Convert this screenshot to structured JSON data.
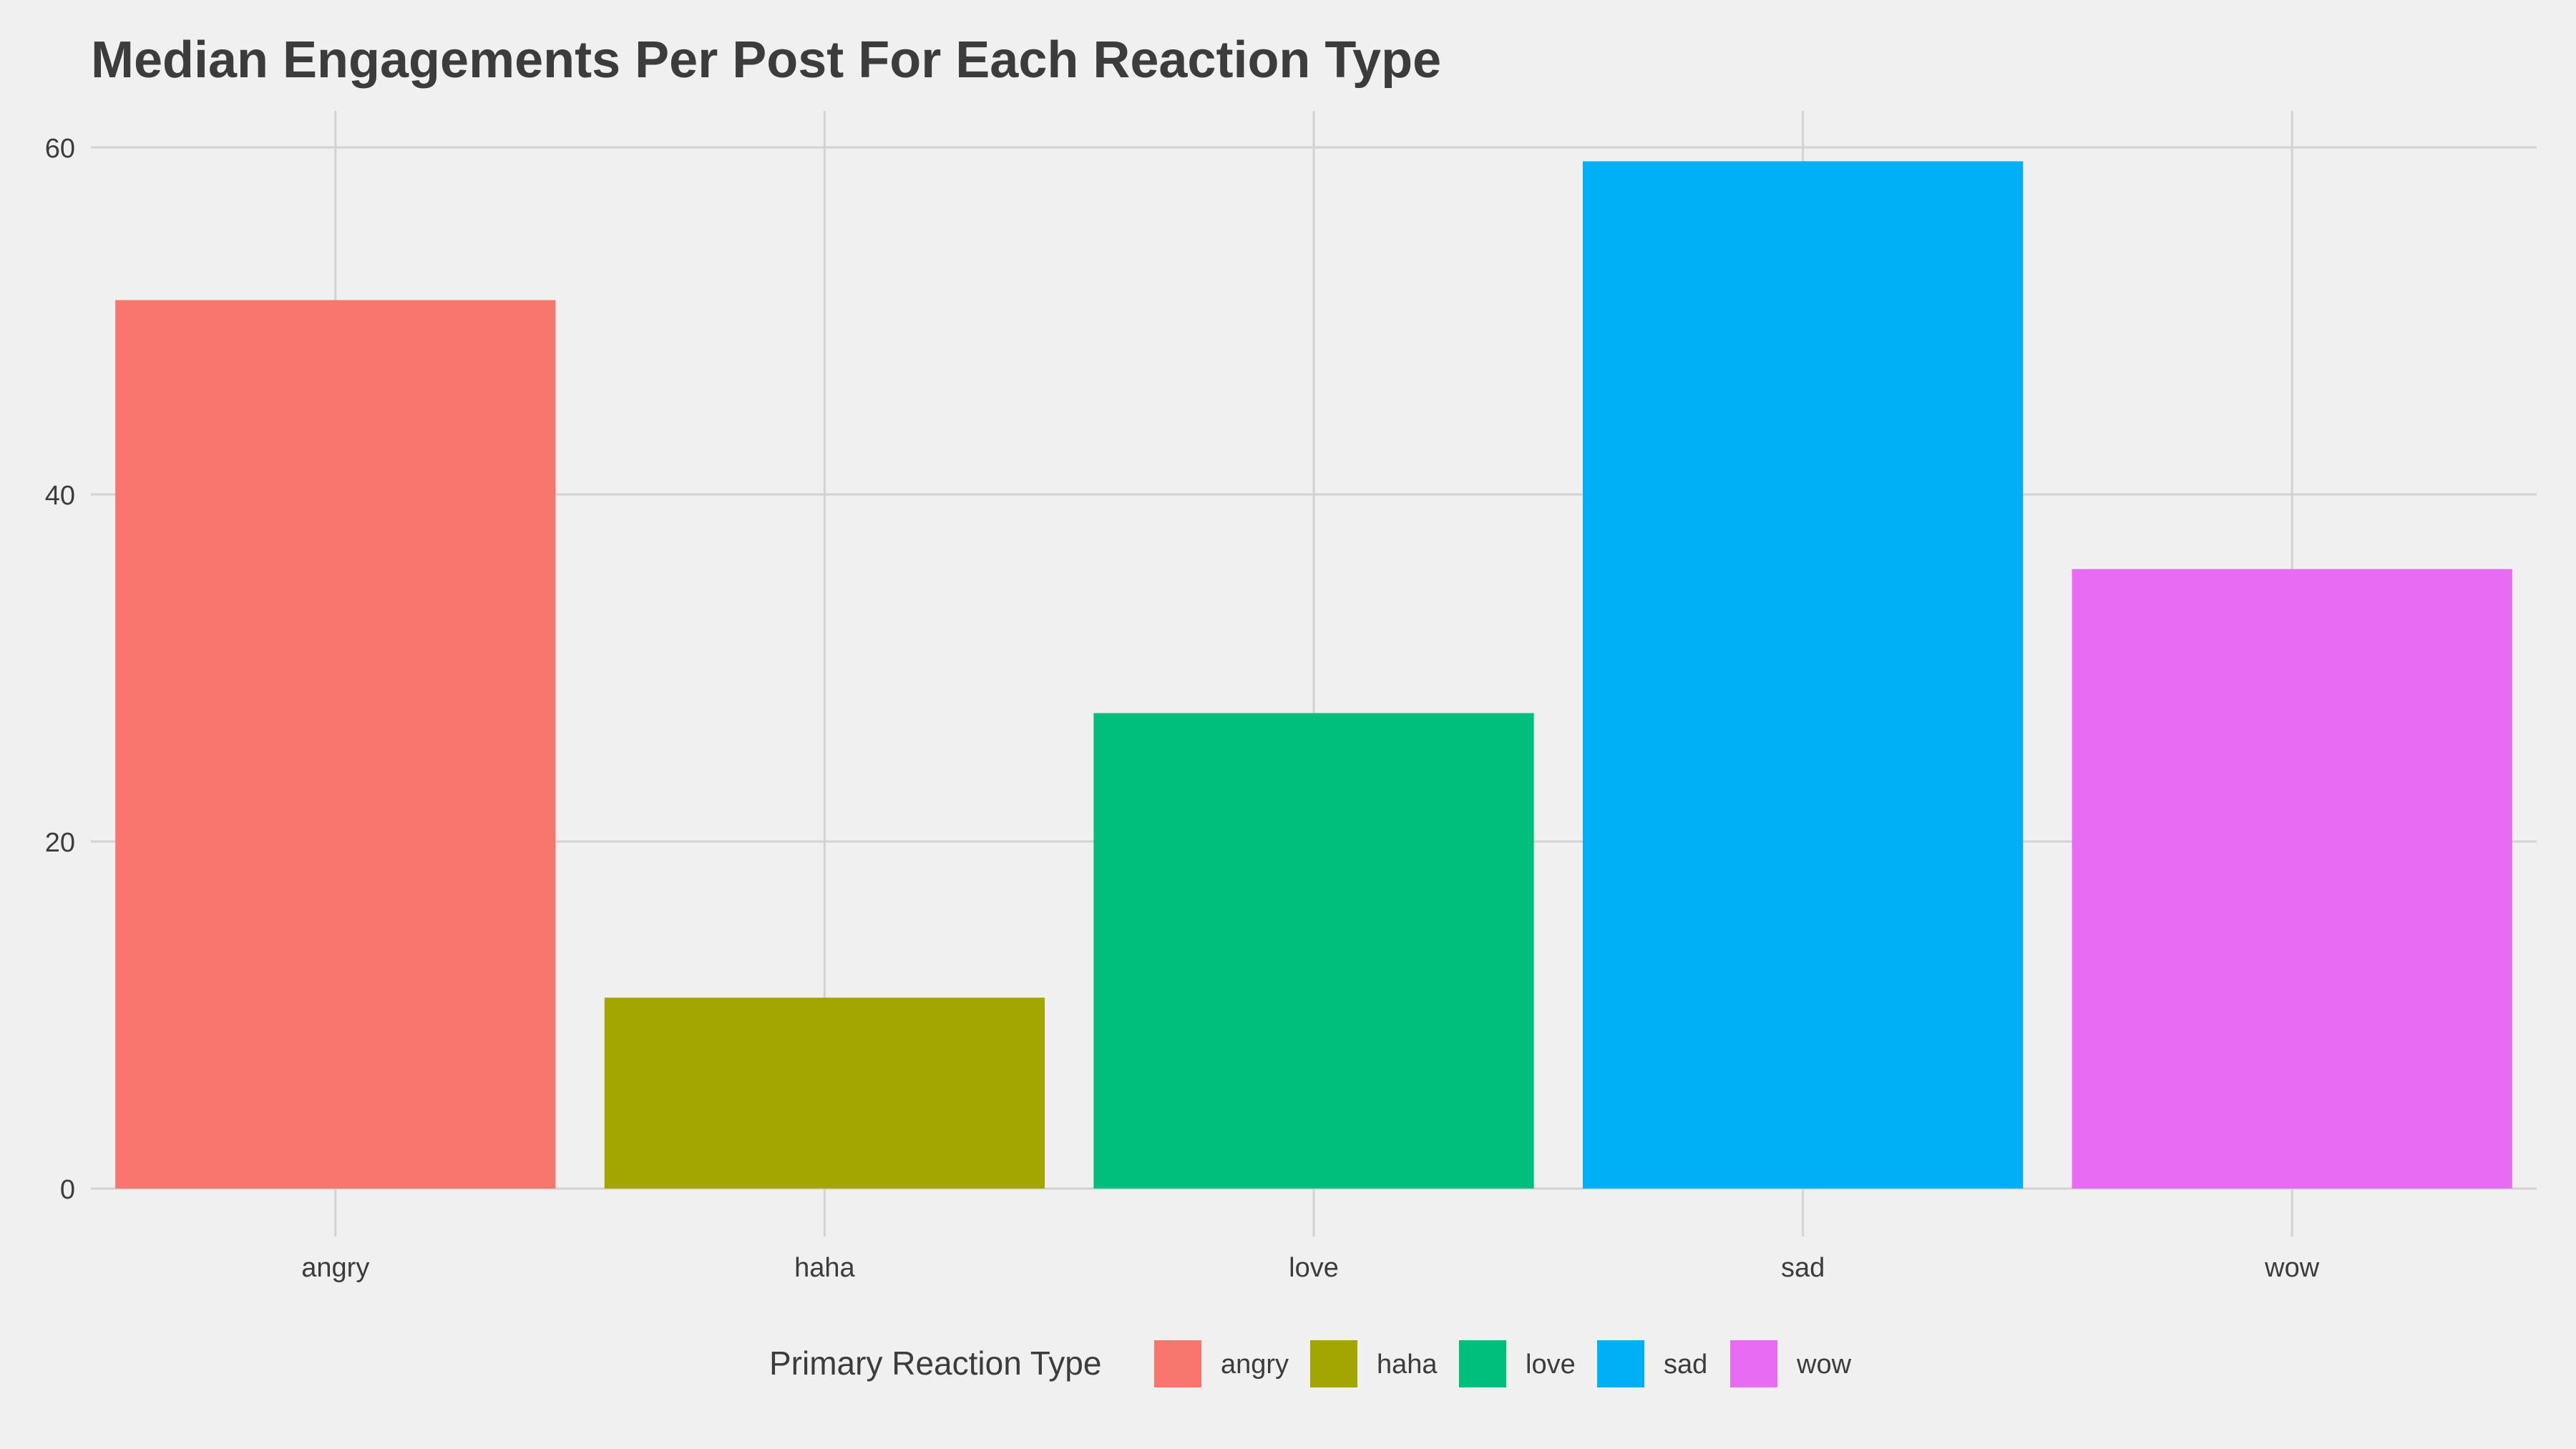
{
  "chart_data": {
    "type": "bar",
    "title": "Median Engagements Per Post For Each Reaction Type",
    "xlabel": "",
    "ylabel": "",
    "categories": [
      "angry",
      "haha",
      "love",
      "sad",
      "wow"
    ],
    "values": [
      51.2,
      11.0,
      27.4,
      59.2,
      35.7
    ],
    "colors": [
      "#F8766D",
      "#A3A500",
      "#00BF7D",
      "#00B0F6",
      "#E76BF3"
    ],
    "ylim": [
      0,
      60
    ],
    "yticks": [
      0,
      20,
      40,
      60
    ],
    "grid": true,
    "legend": {
      "title": "Primary Reaction Type",
      "position": "bottom",
      "items": [
        "angry",
        "haha",
        "love",
        "sad",
        "wow"
      ]
    }
  }
}
